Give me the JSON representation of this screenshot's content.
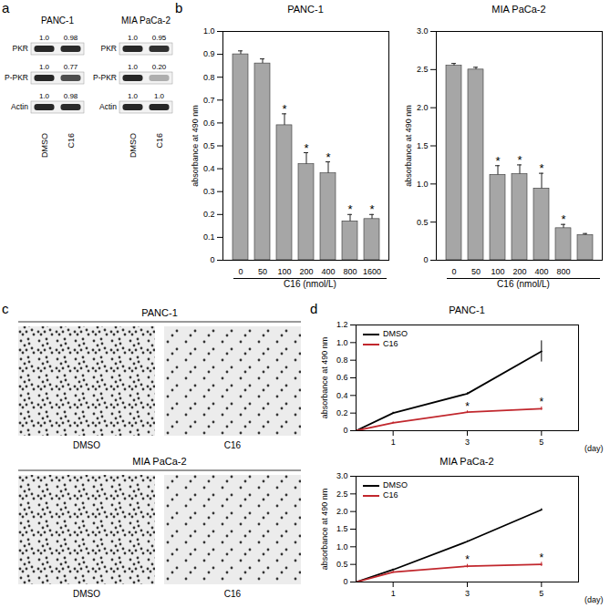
{
  "panel_labels": [
    "a",
    "b",
    "c",
    "d"
  ],
  "western_blot": {
    "blots": [
      {
        "title": "PANC-1",
        "lanes": [
          "DMSO",
          "C16"
        ],
        "rows": [
          {
            "label": "PKR",
            "values": [
              "1.0",
              "0.98"
            ]
          },
          {
            "label": "P-PKR",
            "values": [
              "1.0",
              "0.77"
            ]
          },
          {
            "label": "Actin",
            "values": [
              "1.0",
              "0.98"
            ]
          }
        ]
      },
      {
        "title": "MIA PaCa-2",
        "lanes": [
          "DMSO",
          "C16"
        ],
        "rows": [
          {
            "label": "PKR",
            "values": [
              "1.0",
              "0.95"
            ]
          },
          {
            "label": "P-PKR",
            "values": [
              "1.0",
              "0.20"
            ]
          },
          {
            "label": "Actin",
            "values": [
              "1.0",
              "1.0"
            ]
          }
        ]
      }
    ]
  },
  "micrographs": {
    "groups": [
      {
        "title": "PANC-1",
        "images": [
          "DMSO",
          "C16"
        ]
      },
      {
        "title": "MIA PaCa-2",
        "images": [
          "DMSO",
          "C16"
        ]
      }
    ]
  },
  "chart_data": [
    {
      "type": "bar",
      "title": "PANC-1",
      "ylabel": "absorbance at 490 nm",
      "xlabel": "C16 (nmol/L)",
      "categories": [
        "0",
        "50",
        "100",
        "200",
        "400",
        "800",
        "1600"
      ],
      "values": [
        0.9,
        0.86,
        0.59,
        0.42,
        0.38,
        0.17,
        0.18
      ],
      "errors": [
        0.015,
        0.02,
        0.05,
        0.05,
        0.05,
        0.03,
        0.02
      ],
      "annotations": [
        null,
        null,
        "*",
        "*",
        "*",
        "*",
        "*"
      ],
      "color": "#a6a6a6",
      "grid": false,
      "ylim": [
        0,
        1
      ],
      "yticks": [
        0,
        0.1,
        0.2,
        0.3,
        0.4,
        0.5,
        0.6,
        0.7,
        0.8,
        0.9,
        {
          "value": 1,
          "label": "1.0"
        }
      ]
    },
    {
      "type": "bar",
      "title": "MIA PaCa-2",
      "ylabel": "absorbance at 490 nm",
      "xlabel": "C16 (nmol/L)",
      "categories": [
        "0",
        "50",
        "100",
        "200",
        "400",
        "800",
        null
      ],
      "values": [
        2.55,
        2.5,
        1.12,
        1.13,
        0.94,
        0.42,
        0.33
      ],
      "errors": [
        0.03,
        0.03,
        0.12,
        0.12,
        0.2,
        0.05,
        0.02
      ],
      "annotations": [
        null,
        null,
        "*",
        "*",
        "*",
        "*",
        null
      ],
      "color": "#a6a6a6",
      "grid": false,
      "ylim": [
        0,
        3
      ],
      "yticks": [
        0,
        0.5,
        {
          "value": 1,
          "label": "1.0"
        },
        1.5,
        {
          "value": 2,
          "label": "2.0"
        },
        2.5,
        {
          "value": 3,
          "label": "3.0"
        }
      ]
    },
    {
      "type": "line",
      "title": "PANC-1",
      "ylabel": "absorbance at 490 nm",
      "xlabel": "(day)",
      "x": [
        0,
        1,
        3,
        5
      ],
      "legend": "top-left",
      "grid": false,
      "series": [
        {
          "name": "DMSO",
          "color": "#000000",
          "values": [
            0,
            0.2,
            0.42,
            0.9
          ],
          "errors": [
            0,
            0.01,
            0.01,
            0.12
          ],
          "annotations": [
            null,
            null,
            null,
            null
          ]
        },
        {
          "name": "C16",
          "color": "#c1272d",
          "values": [
            0,
            0.09,
            0.21,
            0.25
          ],
          "errors": [
            0,
            0.01,
            0.015,
            0.02
          ],
          "annotations": [
            null,
            null,
            "*",
            "*"
          ]
        }
      ],
      "xlim": [
        0,
        6
      ],
      "xticks": [
        1,
        3,
        5
      ],
      "ylim": [
        0,
        1.2
      ],
      "yticks": [
        0,
        0.2,
        0.4,
        0.6,
        0.8,
        {
          "value": 1,
          "label": "1.0"
        },
        1.2
      ]
    },
    {
      "type": "line",
      "title": "MIA PaCa-2",
      "ylabel": "absorbance at 490 nm",
      "xlabel": "(day)",
      "x": [
        0,
        1,
        3,
        5
      ],
      "legend": "top-left",
      "grid": false,
      "series": [
        {
          "name": "DMSO",
          "color": "#000000",
          "values": [
            0,
            0.35,
            1.15,
            2.05
          ],
          "errors": [
            0,
            0.02,
            0.02,
            0.03
          ],
          "annotations": [
            null,
            null,
            null,
            null
          ]
        },
        {
          "name": "C16",
          "color": "#c1272d",
          "values": [
            0,
            0.28,
            0.45,
            0.5
          ],
          "errors": [
            0,
            0.03,
            0.05,
            0.06
          ],
          "annotations": [
            null,
            null,
            "*",
            "*"
          ]
        }
      ],
      "xlim": [
        0,
        6
      ],
      "xticks": [
        1,
        3,
        5
      ],
      "ylim": [
        0,
        3
      ],
      "yticks": [
        0,
        0.5,
        {
          "value": 1,
          "label": "1.0"
        },
        1.5,
        {
          "value": 2,
          "label": "2.0"
        },
        2.5,
        {
          "value": 3,
          "label": "3.0"
        }
      ]
    }
  ]
}
